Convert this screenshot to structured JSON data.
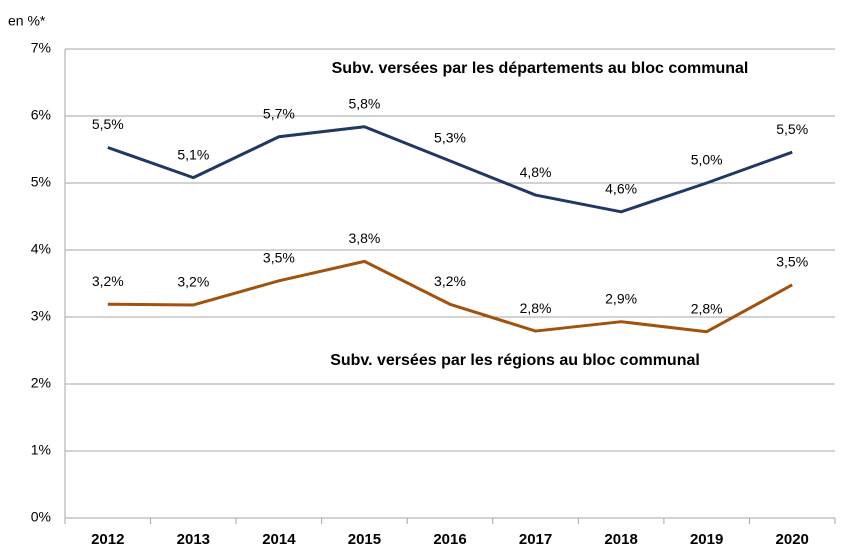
{
  "chart_data": {
    "type": "line",
    "y_axis_label": "en %*",
    "categories": [
      "2012",
      "2013",
      "2014",
      "2015",
      "2016",
      "2017",
      "2018",
      "2019",
      "2020"
    ],
    "series": [
      {
        "name": "Subv. versées par les départements au bloc communal",
        "color": "#1f3864",
        "values": [
          5.53,
          5.08,
          5.69,
          5.84,
          5.33,
          4.82,
          4.57,
          5.0,
          5.46
        ],
        "value_labels": [
          "5,5%",
          "5,1%",
          "5,7%",
          "5,8%",
          "5,3%",
          "4,8%",
          "4,6%",
          "5,0%",
          "5,5%"
        ]
      },
      {
        "name": "Subv. versées par les régions au bloc communal",
        "color": "#a0520e",
        "values": [
          3.19,
          3.18,
          3.54,
          3.83,
          3.19,
          2.79,
          2.93,
          2.78,
          3.48
        ],
        "value_labels": [
          "3,2%",
          "3,2%",
          "3,5%",
          "3,8%",
          "3,2%",
          "2,8%",
          "2,9%",
          "2,8%",
          "3,5%"
        ]
      }
    ],
    "ylim": [
      0,
      7
    ],
    "yticks": [
      {
        "value": 0,
        "label": "0%"
      },
      {
        "value": 1,
        "label": "1%"
      },
      {
        "value": 2,
        "label": "2%"
      },
      {
        "value": 3,
        "label": "3%"
      },
      {
        "value": 4,
        "label": "4%"
      },
      {
        "value": 5,
        "label": "5%"
      },
      {
        "value": 6,
        "label": "6%"
      },
      {
        "value": 7,
        "label": "7%"
      }
    ],
    "grid": true
  }
}
